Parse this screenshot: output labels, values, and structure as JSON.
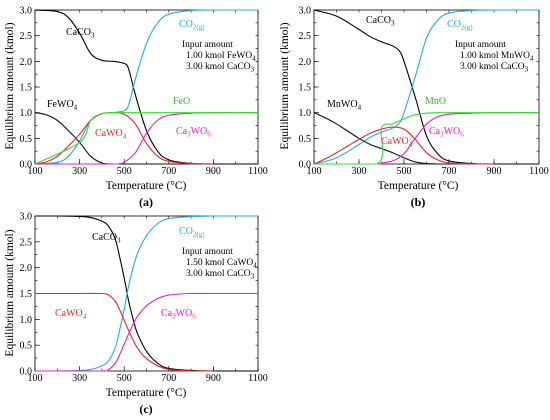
{
  "figure": {
    "xlabel": "Temperature (°C)",
    "ylabel": "Equilibrium amount (kmol)",
    "xticks": [
      100,
      300,
      500,
      700,
      900,
      1100
    ],
    "yticks": [
      "0.0",
      "0.5",
      "1.0",
      "1.5",
      "2.0",
      "2.5",
      "3.0"
    ],
    "colors": {
      "CaCO3": "#000000",
      "CO2": "#29a9e0",
      "xWO4": "#111111",
      "CaWO4": "#e8262b",
      "Ca3WO6": "#e020c8",
      "MO": "#3cd43c"
    }
  },
  "chart_data": [
    {
      "type": "line",
      "panel_label": "(a)",
      "xlim": [
        100,
        1100
      ],
      "ylim": [
        0,
        3
      ],
      "input_title": "Input amount",
      "input_lines": [
        "1.00 kmol FeWO4",
        "3.00 kmol CaCO3"
      ],
      "series": [
        {
          "name": "CaCO3",
          "color": "#000000",
          "x": [
            100,
            200,
            250,
            300,
            350,
            400,
            450,
            500,
            520,
            550,
            600,
            650,
            700,
            800,
            900,
            1100
          ],
          "y": [
            3.0,
            2.97,
            2.85,
            2.55,
            2.15,
            2.02,
            2.0,
            1.96,
            1.85,
            1.35,
            0.65,
            0.25,
            0.08,
            0.01,
            0.0,
            0.0
          ]
        },
        {
          "name": "CO2",
          "color": "#29a9e0",
          "x": [
            100,
            200,
            250,
            300,
            350,
            400,
            450,
            500,
            520,
            550,
            600,
            650,
            700,
            800,
            900,
            1100
          ],
          "y": [
            0.0,
            0.03,
            0.15,
            0.45,
            0.85,
            0.98,
            1.0,
            1.04,
            1.15,
            1.65,
            2.35,
            2.75,
            2.92,
            2.99,
            3.0,
            3.0
          ]
        },
        {
          "name": "FeWO4",
          "color": "#111111",
          "x": [
            100,
            150,
            200,
            250,
            300,
            350,
            400,
            450,
            500,
            550,
            600,
            650,
            700,
            800
          ],
          "y": [
            1.0,
            0.96,
            0.85,
            0.65,
            0.42,
            0.15,
            0.02,
            0.0,
            0.0,
            0.0,
            0.0,
            0.0,
            0.0,
            0.0
          ]
        },
        {
          "name": "CaWO4",
          "color": "#e8262b",
          "x": [
            100,
            150,
            200,
            250,
            300,
            350,
            400,
            450,
            500,
            550,
            600,
            650,
            700,
            800,
            900
          ],
          "y": [
            0.0,
            0.04,
            0.15,
            0.35,
            0.58,
            0.85,
            0.98,
            1.0,
            0.97,
            0.78,
            0.4,
            0.15,
            0.05,
            0.01,
            0.0
          ]
        },
        {
          "name": "Ca3WO6",
          "color": "#e020c8",
          "x": [
            100,
            450,
            480,
            500,
            550,
            600,
            650,
            700,
            800,
            900,
            1100
          ],
          "y": [
            0.0,
            0.0,
            0.01,
            0.03,
            0.22,
            0.6,
            0.85,
            0.95,
            0.99,
            1.0,
            1.0
          ]
        },
        {
          "name": "FeO",
          "color": "#3cd43c",
          "x": [
            100,
            300,
            350,
            400,
            450,
            500,
            550,
            600,
            700,
            800,
            1100
          ],
          "y": [
            0.0,
            0.42,
            0.85,
            0.98,
            1.0,
            1.0,
            1.0,
            1.0,
            1.0,
            1.0,
            1.0
          ]
        }
      ]
    },
    {
      "type": "line",
      "panel_label": "(b)",
      "xlim": [
        100,
        1100
      ],
      "ylim": [
        0,
        3
      ],
      "input_title": "Input amount",
      "input_lines": [
        "1.00 kmol MnWO4",
        "3.00 kmol CaCO3"
      ],
      "series": [
        {
          "name": "CaCO3",
          "color": "#000000",
          "x": [
            100,
            200,
            300,
            350,
            400,
            450,
            480,
            500,
            550,
            600,
            650,
            700,
            800,
            900,
            1100
          ],
          "y": [
            3.0,
            2.88,
            2.62,
            2.48,
            2.38,
            2.3,
            2.2,
            2.0,
            1.3,
            0.55,
            0.2,
            0.06,
            0.01,
            0.0,
            0.0
          ]
        },
        {
          "name": "CO2",
          "color": "#29a9e0",
          "x": [
            100,
            200,
            300,
            350,
            400,
            450,
            480,
            500,
            550,
            600,
            650,
            700,
            800,
            900,
            1100
          ],
          "y": [
            0.0,
            0.12,
            0.38,
            0.52,
            0.62,
            0.7,
            0.8,
            1.0,
            1.7,
            2.45,
            2.8,
            2.94,
            2.99,
            3.0,
            3.0
          ]
        },
        {
          "name": "MnWO4",
          "color": "#111111",
          "x": [
            100,
            150,
            200,
            250,
            300,
            350,
            400,
            450,
            500,
            550,
            600,
            650,
            700
          ],
          "y": [
            1.0,
            0.9,
            0.78,
            0.64,
            0.5,
            0.38,
            0.3,
            0.22,
            0.12,
            0.04,
            0.01,
            0.0,
            0.0
          ]
        },
        {
          "name": "CaWO4",
          "color": "#e8262b",
          "x": [
            100,
            150,
            200,
            250,
            300,
            350,
            400,
            450,
            500,
            550,
            600,
            650,
            700,
            800,
            900
          ],
          "y": [
            0.0,
            0.1,
            0.22,
            0.35,
            0.48,
            0.6,
            0.68,
            0.72,
            0.68,
            0.48,
            0.22,
            0.08,
            0.02,
            0.0,
            0.0
          ]
        },
        {
          "name": "Ca3WO6",
          "color": "#e020c8",
          "x": [
            100,
            380,
            400,
            450,
            500,
            550,
            600,
            650,
            700,
            800,
            900,
            1100
          ],
          "y": [
            0.0,
            0.0,
            0.02,
            0.06,
            0.2,
            0.5,
            0.78,
            0.92,
            0.97,
            0.99,
            1.0,
            1.0
          ]
        },
        {
          "name": "MnO",
          "color": "#3cd43c",
          "x": [
            100,
            380,
            400,
            450,
            500,
            550,
            600,
            650,
            700,
            800,
            1100
          ],
          "y": [
            0.0,
            0.0,
            0.7,
            0.78,
            0.88,
            0.96,
            0.99,
            1.0,
            1.0,
            1.0,
            1.0
          ]
        }
      ]
    },
    {
      "type": "line",
      "panel_label": "(c)",
      "xlim": [
        100,
        1100
      ],
      "ylim": [
        0,
        3
      ],
      "input_title": "Input amount",
      "input_lines": [
        "1.50 kmol CaWO4",
        "3.00 kmol CaCO3"
      ],
      "series": [
        {
          "name": "CaCO3",
          "color": "#000000",
          "x": [
            100,
            200,
            300,
            350,
            400,
            430,
            460,
            480,
            500,
            520,
            540,
            560,
            600,
            650,
            700,
            800,
            900,
            1100
          ],
          "y": [
            3.0,
            3.0,
            2.99,
            2.97,
            2.9,
            2.8,
            2.55,
            2.2,
            1.8,
            1.35,
            1.0,
            0.72,
            0.38,
            0.15,
            0.05,
            0.01,
            0.0,
            0.0
          ]
        },
        {
          "name": "CO2",
          "color": "#29a9e0",
          "x": [
            100,
            200,
            300,
            350,
            400,
            430,
            460,
            480,
            500,
            520,
            540,
            560,
            600,
            650,
            700,
            800,
            900,
            1100
          ],
          "y": [
            0.0,
            0.0,
            0.01,
            0.03,
            0.1,
            0.2,
            0.45,
            0.8,
            1.2,
            1.65,
            2.0,
            2.28,
            2.62,
            2.85,
            2.95,
            2.99,
            3.0,
            3.0
          ]
        },
        {
          "name": "CaWO4",
          "color": "#e8262b",
          "x": [
            100,
            200,
            300,
            400,
            430,
            460,
            480,
            500,
            520,
            540,
            560,
            600,
            650,
            700,
            800,
            900
          ],
          "y": [
            1.5,
            1.5,
            1.5,
            1.5,
            1.47,
            1.35,
            1.18,
            0.98,
            0.78,
            0.6,
            0.44,
            0.24,
            0.1,
            0.03,
            0.0,
            0.0
          ]
        },
        {
          "name": "Ca3WO6",
          "color": "#e020c8",
          "x": [
            100,
            400,
            430,
            460,
            480,
            500,
            520,
            540,
            560,
            600,
            650,
            700,
            800,
            900,
            1100
          ],
          "y": [
            0.0,
            0.0,
            0.03,
            0.15,
            0.32,
            0.52,
            0.72,
            0.9,
            1.06,
            1.26,
            1.4,
            1.47,
            1.5,
            1.5,
            1.5
          ]
        }
      ]
    }
  ]
}
